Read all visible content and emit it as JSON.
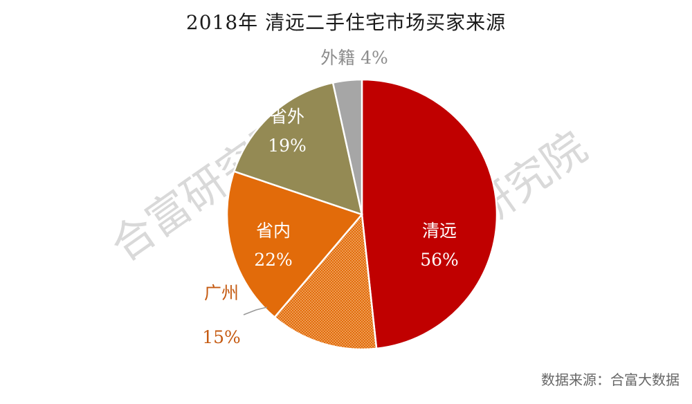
{
  "chart_data": {
    "type": "pie",
    "title": "2018年 清远二手住宅市场买家来源",
    "slices": [
      {
        "name": "清远",
        "value": 56,
        "label": "56%",
        "color": "#c00000"
      },
      {
        "name": "广州",
        "value": 15,
        "label": "15%",
        "color": "#e26b0a",
        "pattern": "dotted"
      },
      {
        "name": "省内",
        "value": 22,
        "label": "22%",
        "color": "#e26b0a"
      },
      {
        "name": "省外",
        "value": 19,
        "label": "19%",
        "color": "#948a54"
      },
      {
        "name": "外籍",
        "value": 4,
        "label": "4%",
        "color": "#a6a6a6"
      }
    ]
  },
  "source": "数据来源：合富大数据",
  "watermarks": [
    "合富研究院",
    "研究院"
  ]
}
